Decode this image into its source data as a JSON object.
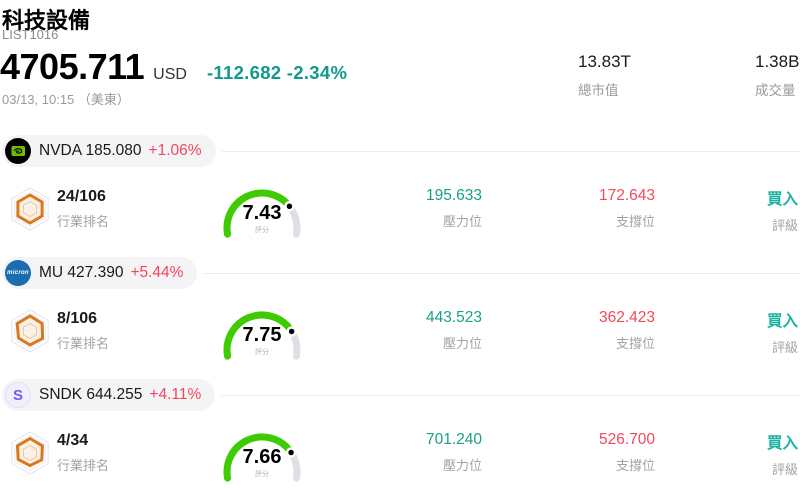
{
  "header": {
    "title": "科技設備",
    "list_id": "LIST1016",
    "price": "4705.711",
    "currency": "USD",
    "change": "-112.682 -2.34%",
    "timestamp": "03/13, 10:15 （美東）",
    "market_cap": {
      "value": "13.83T",
      "label": "總市值"
    },
    "volume": {
      "value": "1.38B",
      "label": "成交量"
    }
  },
  "colors": {
    "header_change_green": "#10998c",
    "value_green": "#1aa185",
    "rating_teal": "#1bb2a2",
    "change_red": "#f5475a",
    "gauge_green": "#3ecb00",
    "gauge_track": "#dfdfe6",
    "badge_orange": "#d9791f",
    "pill_background": "#f4f4f6"
  },
  "rows": [
    {
      "symbol": "NVDA",
      "price": "185.080",
      "change": "+1.06%",
      "logo_icon": "nvidia-logo",
      "rank": "24/106",
      "rank_label": "行業排名",
      "score": "7.43",
      "score_label": "評分",
      "resistance": {
        "value": "195.633",
        "label": "壓力位"
      },
      "support": {
        "value": "172.643",
        "label": "支撐位"
      },
      "rating": {
        "value": "買入",
        "label": "評級"
      }
    },
    {
      "symbol": "MU",
      "price": "427.390",
      "change": "+5.44%",
      "logo_icon": "micron-logo",
      "logo_text": "micron",
      "rank": "8/106",
      "rank_label": "行業排名",
      "score": "7.75",
      "score_label": "評分",
      "resistance": {
        "value": "443.523",
        "label": "壓力位"
      },
      "support": {
        "value": "362.423",
        "label": "支撐位"
      },
      "rating": {
        "value": "買入",
        "label": "評級"
      }
    },
    {
      "symbol": "SNDK",
      "price": "644.255",
      "change": "+4.11%",
      "logo_icon": "sandisk-logo",
      "logo_text": "S",
      "rank": "4/34",
      "rank_label": "行業排名",
      "score": "7.66",
      "score_label": "評分",
      "resistance": {
        "value": "701.240",
        "label": "壓力位"
      },
      "support": {
        "value": "526.700",
        "label": "支撐位"
      },
      "rating": {
        "value": "買入",
        "label": "評級"
      }
    }
  ],
  "pill_name_fmt": {
    "row0": "NVDA 185.080",
    "row1": "MU 427.390",
    "row2": "SNDK 644.255"
  }
}
